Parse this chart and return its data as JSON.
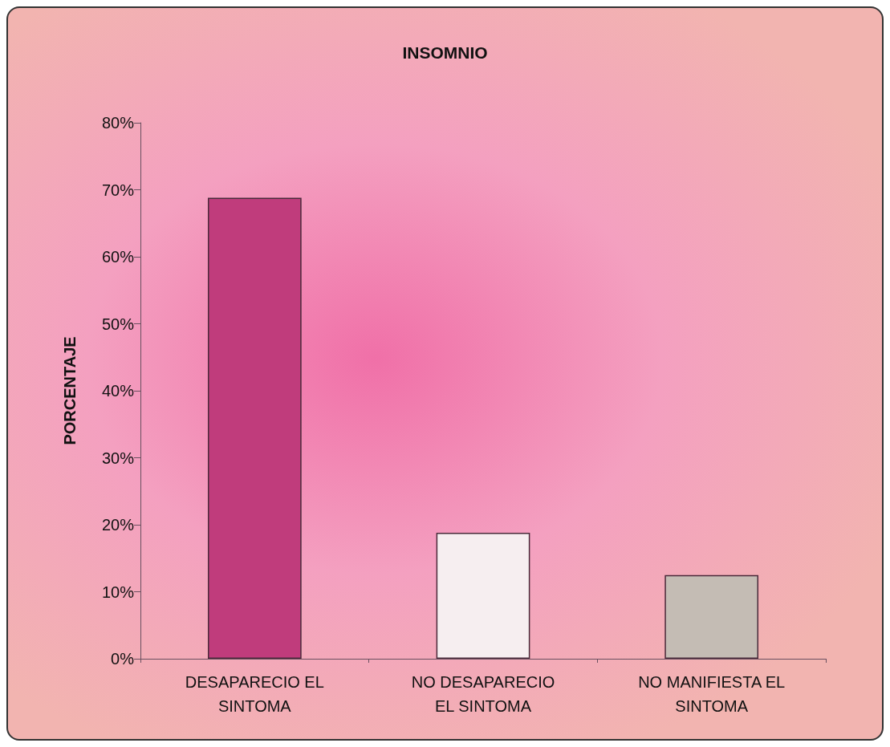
{
  "chart_data": {
    "type": "bar",
    "title": "INSOMNIO",
    "ylabel": "PORCENTAJE",
    "categories": [
      "DESAPARECIO EL\nSINTOMA",
      "NO DESAPARECIO\nEL SINTOMA",
      "NO MANIFIESTA EL\nSINTOMA"
    ],
    "values": [
      68.8,
      18.8,
      12.5
    ],
    "colors": [
      "#c03c7c",
      "#f6eef0",
      "#c4bcb4"
    ],
    "ylim": [
      0,
      80
    ],
    "yticks": [
      {
        "value": 0,
        "label": "0%"
      },
      {
        "value": 10,
        "label": "10%"
      },
      {
        "value": 20,
        "label": "20%"
      },
      {
        "value": 30,
        "label": "30%"
      },
      {
        "value": 40,
        "label": "40%"
      },
      {
        "value": 50,
        "label": "50%"
      },
      {
        "value": 60,
        "label": "60%"
      },
      {
        "value": 70,
        "label": "70%"
      },
      {
        "value": 80,
        "label": "80%"
      }
    ],
    "grid": false
  }
}
